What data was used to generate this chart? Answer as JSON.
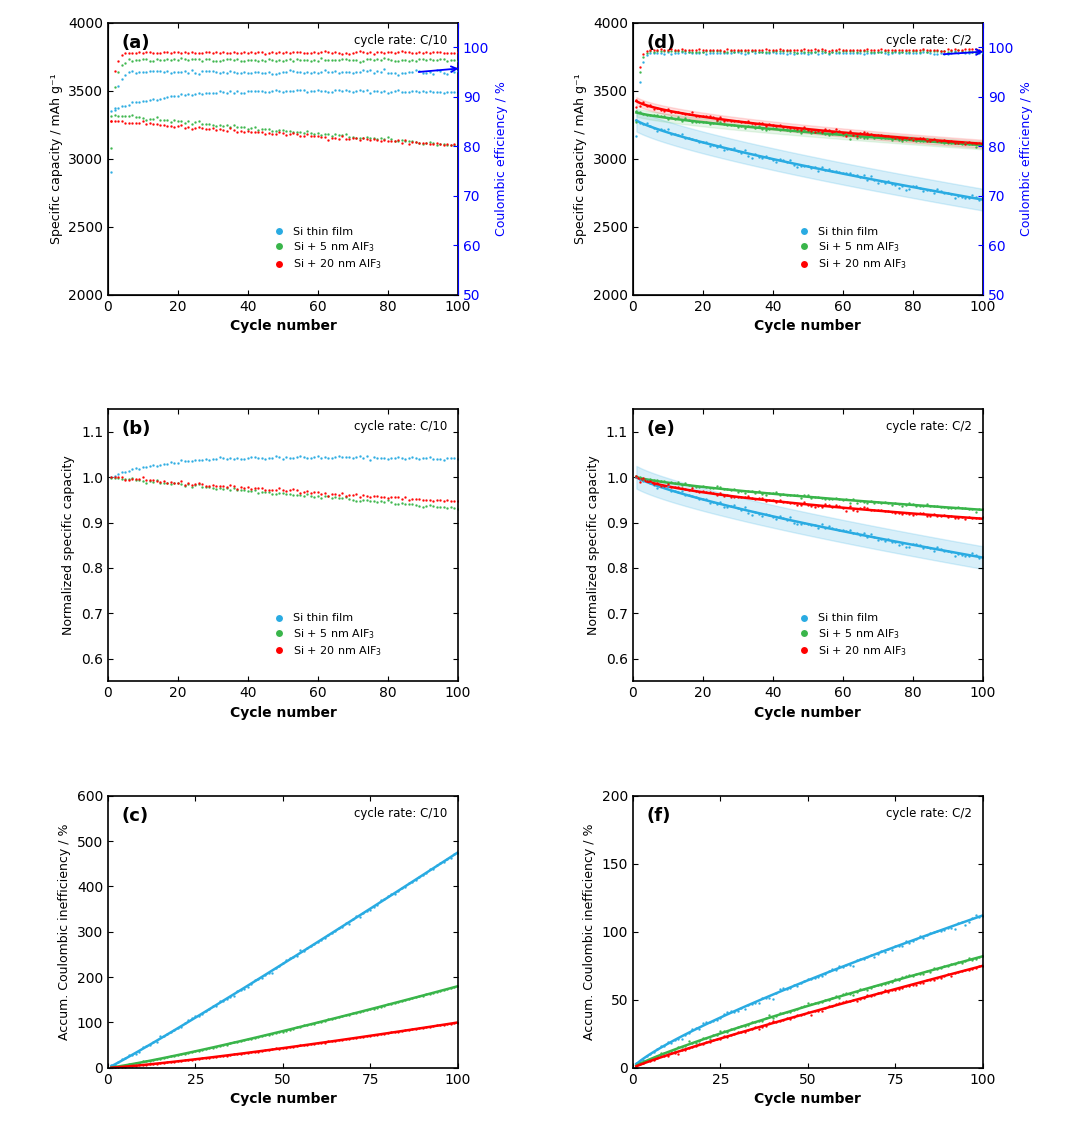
{
  "colors": {
    "cyan": "#29ABE2",
    "green": "#39B54A",
    "red": "#FF0000",
    "blue": "#0000FF"
  },
  "cycle_rates": {
    "left": "cycle rate: C/10",
    "right": "cycle rate: C/2"
  },
  "subplot_a": {
    "ylim": [
      2000,
      4000
    ],
    "yticks": [
      2000,
      2500,
      3000,
      3500,
      4000
    ],
    "ylabel": "Specific capacity / mAh g⁻¹",
    "xlabel": "Cycle number",
    "xticks": [
      0,
      20,
      40,
      60,
      80,
      100
    ],
    "right_ylim": [
      50,
      105
    ],
    "right_yticks": [
      50,
      60,
      70,
      80,
      90,
      100
    ],
    "right_ylabel": "Coulombic efficiency / %"
  },
  "subplot_b": {
    "ylim": [
      0.55,
      1.15
    ],
    "yticks": [
      0.6,
      0.7,
      0.8,
      0.9,
      1.0,
      1.1
    ],
    "ylabel": "Normalized specific capacity",
    "xlabel": "Cycle number",
    "xticks": [
      0,
      20,
      40,
      60,
      80,
      100
    ]
  },
  "subplot_c": {
    "ylim": [
      0,
      600
    ],
    "yticks": [
      0,
      100,
      200,
      300,
      400,
      500,
      600
    ],
    "ylabel": "Accum. Coulombic inefficiency / %",
    "xlabel": "Cycle number",
    "xticks": [
      0,
      25,
      50,
      75,
      100
    ]
  },
  "subplot_d": {
    "ylim": [
      2000,
      4000
    ],
    "yticks": [
      2000,
      2500,
      3000,
      3500,
      4000
    ],
    "ylabel": "Specific capacity / mAh g⁻¹",
    "xlabel": "Cycle number",
    "xticks": [
      0,
      20,
      40,
      60,
      80,
      100
    ],
    "right_ylim": [
      50,
      105
    ],
    "right_yticks": [
      50,
      60,
      70,
      80,
      90,
      100
    ],
    "right_ylabel": "Coulombic efficiency / %"
  },
  "subplot_e": {
    "ylim": [
      0.55,
      1.15
    ],
    "yticks": [
      0.6,
      0.7,
      0.8,
      0.9,
      1.0,
      1.1
    ],
    "ylabel": "Normalized specific capacity",
    "xlabel": "Cycle number",
    "xticks": [
      0,
      20,
      40,
      60,
      80,
      100
    ]
  },
  "subplot_f": {
    "ylim": [
      0,
      200
    ],
    "yticks": [
      0,
      50,
      100,
      150,
      200
    ],
    "ylabel": "Accum. Coulombic inefficiency / %",
    "xlabel": "Cycle number",
    "xticks": [
      0,
      25,
      50,
      75,
      100
    ]
  }
}
